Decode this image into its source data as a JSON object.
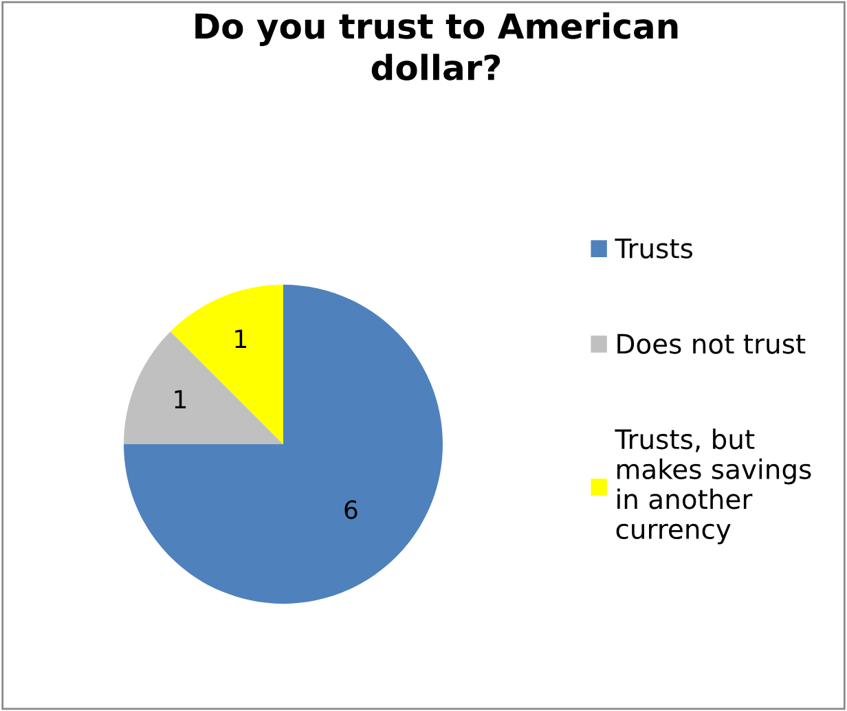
{
  "chart_data": {
    "type": "pie",
    "title": "Do you trust to American\ndollar?",
    "categories": [
      "Trusts",
      "Does not trust",
      "Trusts, but\nmakes savings\nin another\ncurrency"
    ],
    "values": [
      6,
      1,
      1
    ],
    "colors": [
      "#4f81bd",
      "#c0c0c0",
      "#ffff00"
    ],
    "data_labels": true,
    "legend": "right"
  }
}
